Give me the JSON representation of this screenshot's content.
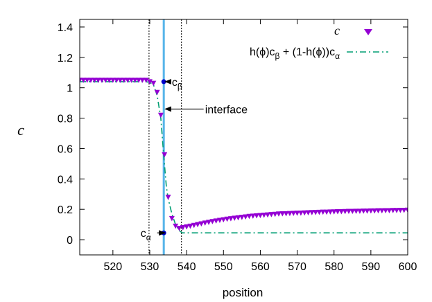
{
  "chart_data": {
    "type": "scatter",
    "xlabel": "position",
    "ylabel": "c",
    "xlim": [
      511,
      600
    ],
    "ylim": [
      -0.1,
      1.45
    ],
    "xticks": [
      520,
      530,
      540,
      550,
      560,
      570,
      580,
      590,
      600
    ],
    "yticks": [
      0,
      0.2,
      0.4,
      0.6,
      0.8,
      1,
      1.2,
      1.4
    ],
    "xtick_labels": [
      "520",
      "530",
      "540",
      "550",
      "560",
      "570",
      "580",
      "590",
      "600"
    ],
    "ytick_labels": [
      "0",
      "0.2",
      "0.4",
      "0.6",
      "0.8",
      "1",
      "1.2",
      "1.4"
    ],
    "grid": false,
    "legend_position": "top-right",
    "legend": {
      "series1_label": "c",
      "series2_parts": [
        "h(",
        "ϕ",
        ")c",
        "β",
        " + (1-h(",
        "ϕ",
        "))c",
        "α"
      ]
    },
    "series": [
      {
        "name": "c",
        "style": "markers",
        "marker": "triangle-down",
        "color": "#9400d3",
        "x": [
          511,
          512,
          513,
          514,
          515,
          516,
          517,
          518,
          519,
          520,
          521,
          522,
          523,
          524,
          525,
          526,
          527,
          528,
          529,
          530,
          531,
          532,
          533,
          534,
          535,
          536,
          537,
          538,
          539,
          540,
          541,
          542,
          543,
          544,
          545,
          546,
          547,
          548,
          549,
          550,
          551,
          552,
          553,
          554,
          555,
          556,
          557,
          558,
          559,
          560,
          561,
          562,
          563,
          564,
          565,
          566,
          567,
          568,
          569,
          570,
          571,
          572,
          573,
          574,
          575,
          576,
          577,
          578,
          579,
          580,
          581,
          582,
          583,
          584,
          585,
          586,
          587,
          588,
          589,
          590,
          591,
          592,
          593,
          594,
          595,
          596,
          597,
          598,
          599,
          600
        ],
        "y": [
          1.05,
          1.05,
          1.05,
          1.05,
          1.05,
          1.05,
          1.05,
          1.05,
          1.05,
          1.05,
          1.05,
          1.05,
          1.05,
          1.05,
          1.05,
          1.05,
          1.05,
          1.05,
          1.05,
          1.04,
          1.03,
          0.97,
          0.82,
          0.56,
          0.28,
          0.14,
          0.09,
          0.075,
          0.08,
          0.085,
          0.09,
          0.095,
          0.1,
          0.105,
          0.11,
          0.115,
          0.12,
          0.124,
          0.128,
          0.132,
          0.136,
          0.139,
          0.142,
          0.145,
          0.148,
          0.151,
          0.154,
          0.156,
          0.158,
          0.16,
          0.162,
          0.164,
          0.166,
          0.168,
          0.17,
          0.171,
          0.172,
          0.173,
          0.174,
          0.175,
          0.176,
          0.177,
          0.178,
          0.179,
          0.18,
          0.181,
          0.182,
          0.182,
          0.183,
          0.184,
          0.185,
          0.185,
          0.186,
          0.187,
          0.187,
          0.188,
          0.188,
          0.189,
          0.189,
          0.19,
          0.19,
          0.191,
          0.191,
          0.192,
          0.192,
          0.193,
          0.193,
          0.194,
          0.194,
          0.195
        ]
      },
      {
        "name": "h(ϕ)cβ + (1-h(ϕ))cα",
        "style": "dash-dot-line",
        "color": "#009e73",
        "x": [
          511,
          529,
          530,
          531,
          532,
          533,
          533.8,
          534.5,
          535,
          536,
          537,
          538,
          538.8,
          540,
          600
        ],
        "y": [
          1.04,
          1.04,
          1.035,
          1.02,
          0.95,
          0.8,
          0.55,
          0.35,
          0.27,
          0.17,
          0.1,
          0.06,
          0.045,
          0.045,
          0.045
        ]
      }
    ],
    "vlines": [
      {
        "x": 529.8,
        "style": "dotted",
        "color": "#000000"
      },
      {
        "x": 533.8,
        "style": "solid",
        "color": "#56b4e9"
      },
      {
        "x": 538.6,
        "style": "dotted",
        "color": "#000000"
      }
    ],
    "points": [
      {
        "name": "c-beta-point",
        "x": 533.8,
        "y": 1.04,
        "color": "#0000cc"
      },
      {
        "name": "c-alpha-point",
        "x": 533.8,
        "y": 0.045,
        "color": "#0000cc"
      }
    ],
    "annotations": [
      {
        "name": "interface",
        "text": "interface",
        "x": 545,
        "y": 0.86,
        "arrow_to": [
          533.8,
          0.86
        ]
      },
      {
        "name": "c-beta",
        "text": "c",
        "sub": "β",
        "x": 536,
        "y": 1.04,
        "arrow_to": [
          533.8,
          1.04
        ]
      },
      {
        "name": "c-alpha",
        "text": "c",
        "sub": "α",
        "x": 527.5,
        "y": 0.045,
        "arrow_to": [
          533.8,
          0.045
        ]
      }
    ]
  }
}
